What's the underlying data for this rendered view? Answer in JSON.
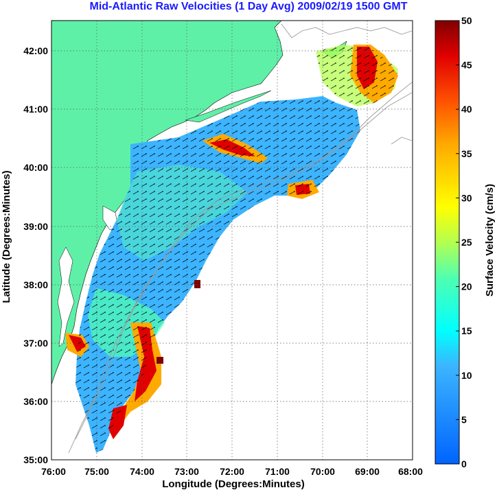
{
  "title": "Mid-Atlantic Raw Velocities (1 Day Avg) 2009/02/19 1500 GMT",
  "map": {
    "xlabel": "Longitude (Degrees:Minutes)",
    "ylabel": "Latitude (Degrees:Minutes)",
    "x_ticks": [
      "76:00",
      "75:00",
      "74:00",
      "73:00",
      "72:00",
      "71:00",
      "70:00",
      "69:00",
      "68:00"
    ],
    "y_ticks": [
      "42:00",
      "41:00",
      "40:00",
      "39:00",
      "38:00",
      "37:00",
      "36:00",
      "35:00"
    ],
    "lon_range": [
      -76,
      -68
    ],
    "lat_range": [
      35,
      42.5
    ],
    "grid": true,
    "colors": {
      "land": "#5ff0a8",
      "ocean": "#ffffff",
      "grid": "#555555",
      "bathymetry": "#9a9a9a"
    }
  },
  "colorbar": {
    "label": "Surface Velocity (cm/s)",
    "range": [
      0,
      50
    ],
    "ticks": [
      "50",
      "45",
      "40",
      "35",
      "30",
      "25",
      "20",
      "15",
      "10",
      "5",
      "0"
    ],
    "colormap": "jet"
  }
}
